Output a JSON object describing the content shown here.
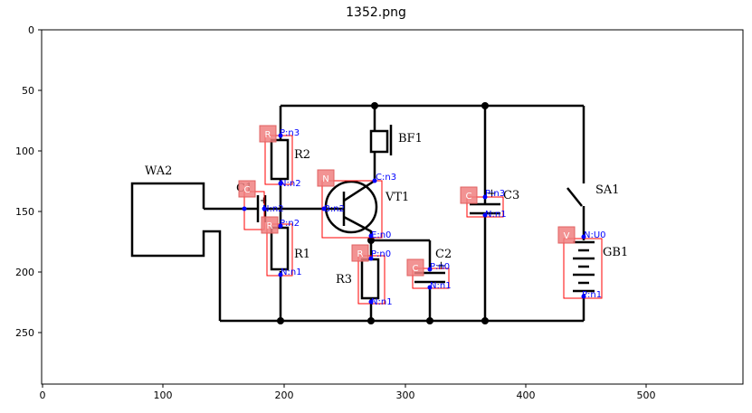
{
  "figure": {
    "title": "1352.png",
    "x_ticks": [
      "0",
      "100",
      "200",
      "300",
      "400",
      "500"
    ],
    "y_ticks": [
      "0",
      "50",
      "100",
      "150",
      "200",
      "250"
    ]
  },
  "schematic_labels": {
    "wa2": "WA2",
    "c1": "C1",
    "r2": "R2",
    "bf1": "BF1",
    "vt1": "VT1",
    "c3": "C3",
    "sa1": "SA1",
    "gb1": "GB1",
    "r1": "R1",
    "r3": "R3",
    "c2": "C2",
    "c3_plus": "+",
    "c2_plus": "+",
    "c1_plus": "+"
  },
  "annotations": [
    {
      "tag": "R",
      "pins": [
        "P:n3",
        "N:n2"
      ]
    },
    {
      "tag": "C",
      "pins": [
        "N:n2"
      ]
    },
    {
      "tag": "N",
      "pins": [
        "C:n3",
        "B:n2",
        "E:n0"
      ]
    },
    {
      "tag": "R",
      "pins": [
        "P:n2",
        "N:n1"
      ]
    },
    {
      "tag": "R",
      "pins": [
        "P:n0",
        "N:n1"
      ]
    },
    {
      "tag": "C",
      "pins": [
        "P:n0",
        "N:n1"
      ]
    },
    {
      "tag": "C",
      "pins": [
        "P:n3",
        "N:n1"
      ]
    },
    {
      "tag": "V",
      "pins": [
        "N:U0",
        "P:n1"
      ]
    }
  ],
  "colors": {
    "wire": "#000000",
    "box": "#ff0000",
    "tag_fill": "#f08080",
    "pin": "#0000ff"
  }
}
